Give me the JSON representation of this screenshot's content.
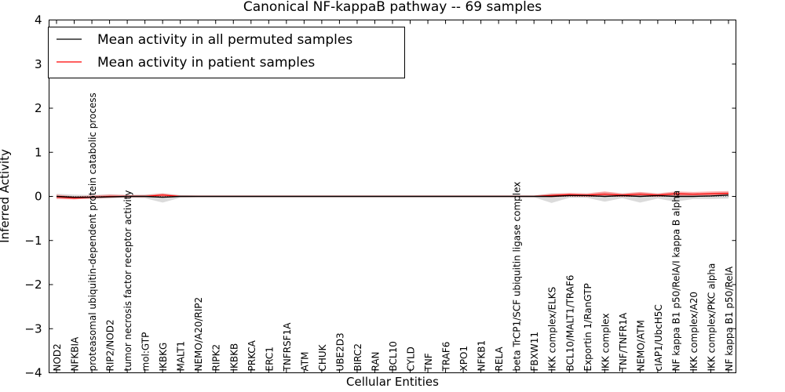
{
  "chart_data": {
    "type": "line",
    "title": "Canonical NF-kappaB pathway -- 69 samples",
    "xlabel": "Cellular Entities",
    "ylabel": "Inferred Activity",
    "ylim": [
      -4,
      4
    ],
    "yticks": [
      -4,
      -3,
      -2,
      -1,
      0,
      1,
      2,
      3,
      4
    ],
    "ytick_labels": [
      "−4",
      "−3",
      "−2",
      "−1",
      "0",
      "1",
      "2",
      "3",
      "4"
    ],
    "grid": false,
    "legend_position": "top-left",
    "categories": [
      "NOD2",
      "NFKBIA",
      "proteasomal ubiquitin-dependent protein catabolic process",
      "RIP2/NOD2",
      "tumor necrosis factor receptor activity",
      "mol:GTP",
      "IKBKG",
      "MALT1",
      "NEMO/A20/RIP2",
      "RIPK2",
      "IKBKB",
      "PRKCA",
      "ERC1",
      "TNFRSF1A",
      "ATM",
      "CHUK",
      "UBE2D3",
      "BIRC2",
      "RAN",
      "BCL10",
      "CYLD",
      "TNF",
      "TRAF6",
      "XPO1",
      "NFKB1",
      "RELA",
      "beta TrCP1/SCF ubiquitin ligase complex",
      "FBXW11",
      "IKK complex/ELKS",
      "BCL10/MALT1/TRAF6",
      "Exportin 1/RanGTP",
      "IKK complex",
      "TNF/TNFR1A",
      "NEMO/ATM",
      "cIAP1/UbcH5C",
      "NF kappa B1 p50/RelA/I kappa B alpha",
      "IKK complex/A20",
      "IKK complex/PKC alpha",
      "NF kappa B1 p50/RelA"
    ],
    "series": [
      {
        "name": "Mean activity in all permuted samples",
        "color": "#000000",
        "values": [
          0.0,
          -0.02,
          -0.02,
          -0.01,
          0.0,
          0.0,
          -0.02,
          0.0,
          0.0,
          0.0,
          0.0,
          0.0,
          0.0,
          0.0,
          0.0,
          0.0,
          0.0,
          0.0,
          0.0,
          0.0,
          0.0,
          0.0,
          0.0,
          0.0,
          0.0,
          0.0,
          0.0,
          0.0,
          0.0,
          0.02,
          0.02,
          0.0,
          0.02,
          0.0,
          0.02,
          0.0,
          0.0,
          0.01,
          0.03
        ],
        "band": {
          "color": "#b0b0b0",
          "lower": [
            -0.05,
            -0.06,
            -0.06,
            -0.05,
            -0.03,
            -0.04,
            -0.14,
            -0.03,
            -0.02,
            -0.02,
            -0.02,
            -0.02,
            -0.02,
            -0.02,
            -0.02,
            -0.02,
            -0.02,
            -0.02,
            -0.02,
            -0.02,
            -0.02,
            -0.02,
            -0.02,
            -0.02,
            -0.02,
            -0.02,
            -0.02,
            -0.02,
            -0.15,
            -0.03,
            -0.03,
            -0.12,
            -0.04,
            -0.14,
            -0.05,
            -0.12,
            -0.06,
            -0.06,
            -0.05
          ],
          "upper": [
            0.06,
            0.04,
            0.03,
            0.05,
            0.03,
            0.04,
            0.07,
            0.03,
            0.02,
            0.02,
            0.02,
            0.02,
            0.02,
            0.02,
            0.02,
            0.02,
            0.02,
            0.02,
            0.02,
            0.02,
            0.02,
            0.02,
            0.02,
            0.02,
            0.02,
            0.02,
            0.02,
            0.02,
            0.07,
            0.06,
            0.05,
            0.1,
            0.06,
            0.09,
            0.06,
            0.09,
            0.07,
            0.08,
            0.1
          ]
        }
      },
      {
        "name": "Mean activity in patient samples",
        "color": "#ff0000",
        "values": [
          -0.01,
          -0.04,
          -0.02,
          0.0,
          0.0,
          0.0,
          0.03,
          0.0,
          0.0,
          0.0,
          0.0,
          0.0,
          0.0,
          0.0,
          0.0,
          0.0,
          0.0,
          0.0,
          0.0,
          0.0,
          0.0,
          0.0,
          0.0,
          0.0,
          0.0,
          0.0,
          0.0,
          0.0,
          0.02,
          0.04,
          0.03,
          0.05,
          0.03,
          0.05,
          0.03,
          0.06,
          0.05,
          0.06,
          0.07
        ],
        "band": {
          "color": "#ff6666",
          "lower": [
            -0.06,
            -0.07,
            -0.05,
            -0.03,
            -0.02,
            -0.02,
            -0.01,
            -0.01,
            -0.01,
            -0.01,
            -0.01,
            -0.01,
            -0.01,
            -0.01,
            -0.01,
            -0.01,
            -0.01,
            -0.01,
            -0.01,
            -0.01,
            -0.01,
            -0.01,
            -0.01,
            -0.01,
            -0.01,
            -0.01,
            -0.01,
            -0.01,
            -0.02,
            0.0,
            -0.01,
            0.0,
            -0.01,
            0.0,
            -0.01,
            0.01,
            0.0,
            0.01,
            0.02
          ],
          "upper": [
            0.04,
            0.0,
            0.02,
            0.04,
            0.03,
            0.03,
            0.07,
            0.02,
            0.02,
            0.02,
            0.02,
            0.02,
            0.02,
            0.02,
            0.02,
            0.02,
            0.02,
            0.02,
            0.02,
            0.02,
            0.02,
            0.02,
            0.02,
            0.02,
            0.02,
            0.02,
            0.02,
            0.02,
            0.06,
            0.08,
            0.07,
            0.11,
            0.07,
            0.1,
            0.07,
            0.11,
            0.1,
            0.11,
            0.12
          ]
        }
      }
    ]
  }
}
